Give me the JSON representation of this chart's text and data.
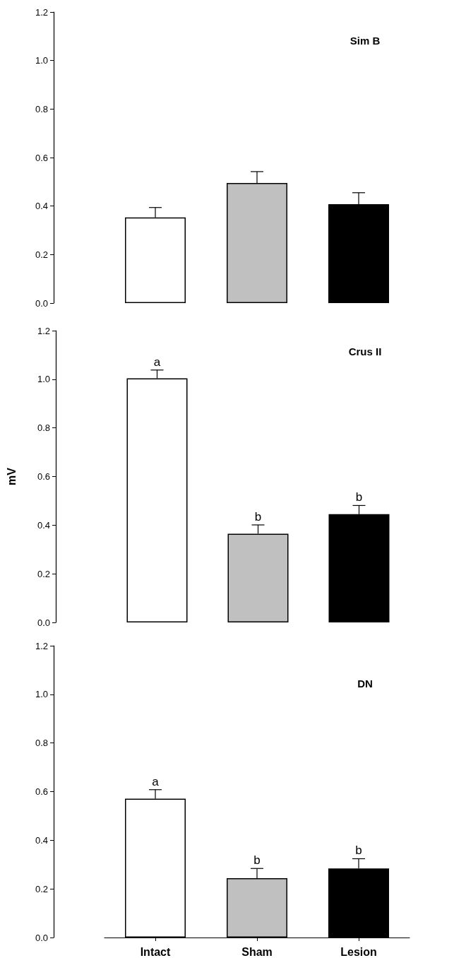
{
  "chart_data": [
    {
      "type": "bar",
      "title": "Sim B",
      "categories": [
        "Intact",
        "Sham",
        "Lesion"
      ],
      "values": [
        0.353,
        0.495,
        0.408
      ],
      "errors": [
        0.041,
        0.047,
        0.047
      ],
      "colors": [
        "#ffffff",
        "#c0c0c0",
        "#000000"
      ],
      "ylim": [
        0,
        1.2
      ],
      "yticks": [
        {
          "value": 0,
          "label": "0.0"
        },
        {
          "value": 0.2,
          "label": "0.2"
        },
        {
          "value": 0.4,
          "label": "0.4"
        },
        {
          "value": 0.6,
          "label": "0.6"
        },
        {
          "value": 0.8,
          "label": "0.8"
        },
        {
          "value": 1,
          "label": "1.0"
        },
        {
          "value": 1.2,
          "label": "1.2"
        }
      ],
      "grid": false,
      "tick_labels": "y"
    },
    {
      "type": "bar",
      "title": "Crus II",
      "ylabel": "mV",
      "categories": [
        "Intact",
        "Sham",
        "Lesion"
      ],
      "values": [
        1.004,
        0.365,
        0.445
      ],
      "errors": [
        0.034,
        0.036,
        0.036
      ],
      "colors": [
        "#ffffff",
        "#c0c0c0",
        "#000000"
      ],
      "ylim": [
        0,
        1.2
      ],
      "yticks": [
        {
          "value": 0,
          "label": "0.0"
        },
        {
          "value": 0.2,
          "label": "0.2"
        },
        {
          "value": 0.4,
          "label": "0.4"
        },
        {
          "value": 0.6,
          "label": "0.6"
        },
        {
          "value": 0.8,
          "label": "0.8"
        },
        {
          "value": 1,
          "label": "1.0"
        },
        {
          "value": 1.2,
          "label": "1.2"
        }
      ],
      "grid": false,
      "tick_labels": "y",
      "annotations": [
        {
          "text": "a",
          "x": "Intact",
          "y": 1.038
        },
        {
          "text": "b",
          "x": "Sham",
          "y": 0.401
        },
        {
          "text": "b",
          "x": "Lesion",
          "y": 0.481
        }
      ]
    },
    {
      "type": "bar",
      "title": "DN",
      "categories": [
        "Intact",
        "Sham",
        "Lesion"
      ],
      "values": [
        0.571,
        0.244,
        0.284
      ],
      "errors": [
        0.037,
        0.04,
        0.04
      ],
      "colors": [
        "#ffffff",
        "#c0c0c0",
        "#000000"
      ],
      "ylim": [
        0,
        1.2
      ],
      "yticks": [
        {
          "value": 0,
          "label": "0.0"
        },
        {
          "value": 0.2,
          "label": "0.2"
        },
        {
          "value": 0.4,
          "label": "0.4"
        },
        {
          "value": 0.6,
          "label": "0.6"
        },
        {
          "value": 0.8,
          "label": "0.8"
        },
        {
          "value": 1,
          "label": "1.0"
        },
        {
          "value": 1.2,
          "label": "1.2"
        }
      ],
      "grid": false,
      "annotations": [
        {
          "text": "a",
          "x": "Intact",
          "y": 0.608
        },
        {
          "text": "b",
          "x": "Sham",
          "y": 0.284
        },
        {
          "text": "b",
          "x": "Lesion",
          "y": 0.324
        }
      ]
    }
  ]
}
